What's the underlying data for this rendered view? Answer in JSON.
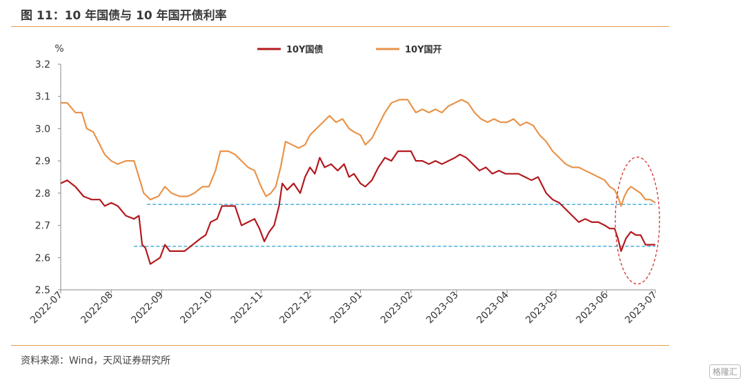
{
  "figure": {
    "title": "图 11：10 年国债与 10 年国开债利率",
    "source": "资料来源：Wind，天风证券研究所",
    "watermark": "格隆汇"
  },
  "chart_data": {
    "type": "line",
    "ylabel": "%",
    "ylim": [
      2.5,
      3.2
    ],
    "yticks": [
      "3.2",
      "3.1",
      "3.0",
      "2.9",
      "2.8",
      "2.7",
      "2.6",
      "2.5"
    ],
    "xticks": [
      "2022-07",
      "2022-08",
      "2022-09",
      "2022-10",
      "2022-11",
      "2022-12",
      "2023-01",
      "2023-02",
      "2023-03",
      "2023-04",
      "2023-05",
      "2023-06",
      "2023-07"
    ],
    "legend_position": "top-center",
    "series": [
      {
        "name": "10Y国债",
        "color": "#b3181d",
        "points": [
          [
            "2022-07-01",
            2.83
          ],
          [
            "2022-07-05",
            2.84
          ],
          [
            "2022-07-10",
            2.82
          ],
          [
            "2022-07-15",
            2.79
          ],
          [
            "2022-07-20",
            2.78
          ],
          [
            "2022-07-25",
            2.78
          ],
          [
            "2022-07-28",
            2.76
          ],
          [
            "2022-08-01",
            2.77
          ],
          [
            "2022-08-05",
            2.76
          ],
          [
            "2022-08-10",
            2.73
          ],
          [
            "2022-08-15",
            2.72
          ],
          [
            "2022-08-18",
            2.73
          ],
          [
            "2022-08-20",
            2.64
          ],
          [
            "2022-08-22",
            2.63
          ],
          [
            "2022-08-25",
            2.58
          ],
          [
            "2022-08-28",
            2.59
          ],
          [
            "2022-08-31",
            2.6
          ],
          [
            "2022-09-03",
            2.64
          ],
          [
            "2022-09-06",
            2.62
          ],
          [
            "2022-09-10",
            2.62
          ],
          [
            "2022-09-15",
            2.62
          ],
          [
            "2022-09-20",
            2.64
          ],
          [
            "2022-09-25",
            2.66
          ],
          [
            "2022-09-28",
            2.67
          ],
          [
            "2022-10-01",
            2.71
          ],
          [
            "2022-10-05",
            2.72
          ],
          [
            "2022-10-08",
            2.76
          ],
          [
            "2022-10-12",
            2.76
          ],
          [
            "2022-10-16",
            2.76
          ],
          [
            "2022-10-20",
            2.7
          ],
          [
            "2022-10-24",
            2.71
          ],
          [
            "2022-10-28",
            2.72
          ],
          [
            "2022-10-31",
            2.69
          ],
          [
            "2022-11-03",
            2.65
          ],
          [
            "2022-11-06",
            2.68
          ],
          [
            "2022-11-09",
            2.7
          ],
          [
            "2022-11-12",
            2.76
          ],
          [
            "2022-11-14",
            2.83
          ],
          [
            "2022-11-17",
            2.81
          ],
          [
            "2022-11-21",
            2.83
          ],
          [
            "2022-11-25",
            2.8
          ],
          [
            "2022-11-28",
            2.85
          ],
          [
            "2022-12-01",
            2.88
          ],
          [
            "2022-12-04",
            2.86
          ],
          [
            "2022-12-07",
            2.91
          ],
          [
            "2022-12-10",
            2.88
          ],
          [
            "2022-12-14",
            2.89
          ],
          [
            "2022-12-18",
            2.87
          ],
          [
            "2022-12-22",
            2.89
          ],
          [
            "2022-12-25",
            2.85
          ],
          [
            "2022-12-28",
            2.86
          ],
          [
            "2023-01-01",
            2.83
          ],
          [
            "2023-01-04",
            2.82
          ],
          [
            "2023-01-08",
            2.84
          ],
          [
            "2023-01-12",
            2.88
          ],
          [
            "2023-01-16",
            2.91
          ],
          [
            "2023-01-20",
            2.9
          ],
          [
            "2023-01-24",
            2.93
          ],
          [
            "2023-01-28",
            2.93
          ],
          [
            "2023-02-01",
            2.93
          ],
          [
            "2023-02-04",
            2.9
          ],
          [
            "2023-02-08",
            2.9
          ],
          [
            "2023-02-12",
            2.89
          ],
          [
            "2023-02-16",
            2.9
          ],
          [
            "2023-02-20",
            2.89
          ],
          [
            "2023-02-24",
            2.9
          ],
          [
            "2023-02-28",
            2.91
          ],
          [
            "2023-03-03",
            2.92
          ],
          [
            "2023-03-07",
            2.91
          ],
          [
            "2023-03-11",
            2.89
          ],
          [
            "2023-03-15",
            2.87
          ],
          [
            "2023-03-19",
            2.88
          ],
          [
            "2023-03-23",
            2.86
          ],
          [
            "2023-03-27",
            2.87
          ],
          [
            "2023-03-31",
            2.86
          ],
          [
            "2023-04-04",
            2.86
          ],
          [
            "2023-04-08",
            2.86
          ],
          [
            "2023-04-12",
            2.85
          ],
          [
            "2023-04-16",
            2.84
          ],
          [
            "2023-04-20",
            2.85
          ],
          [
            "2023-04-25",
            2.8
          ],
          [
            "2023-04-29",
            2.78
          ],
          [
            "2023-05-03",
            2.77
          ],
          [
            "2023-05-07",
            2.75
          ],
          [
            "2023-05-11",
            2.73
          ],
          [
            "2023-05-15",
            2.71
          ],
          [
            "2023-05-19",
            2.72
          ],
          [
            "2023-05-23",
            2.71
          ],
          [
            "2023-05-27",
            2.71
          ],
          [
            "2023-05-31",
            2.7
          ],
          [
            "2023-06-03",
            2.69
          ],
          [
            "2023-06-06",
            2.69
          ],
          [
            "2023-06-08",
            2.66
          ],
          [
            "2023-06-10",
            2.62
          ],
          [
            "2023-06-13",
            2.66
          ],
          [
            "2023-06-16",
            2.68
          ],
          [
            "2023-06-19",
            2.67
          ],
          [
            "2023-06-22",
            2.67
          ],
          [
            "2023-06-25",
            2.64
          ],
          [
            "2023-06-28",
            2.64
          ],
          [
            "2023-07-01",
            2.64
          ]
        ]
      },
      {
        "name": "10Y国开",
        "color": "#e8934a",
        "points": [
          [
            "2022-07-01",
            3.08
          ],
          [
            "2022-07-05",
            3.08
          ],
          [
            "2022-07-10",
            3.05
          ],
          [
            "2022-07-14",
            3.05
          ],
          [
            "2022-07-17",
            3.0
          ],
          [
            "2022-07-21",
            2.99
          ],
          [
            "2022-07-25",
            2.95
          ],
          [
            "2022-07-28",
            2.92
          ],
          [
            "2022-08-01",
            2.9
          ],
          [
            "2022-08-05",
            2.89
          ],
          [
            "2022-08-10",
            2.9
          ],
          [
            "2022-08-15",
            2.9
          ],
          [
            "2022-08-18",
            2.85
          ],
          [
            "2022-08-21",
            2.8
          ],
          [
            "2022-08-25",
            2.78
          ],
          [
            "2022-08-30",
            2.79
          ],
          [
            "2022-09-03",
            2.82
          ],
          [
            "2022-09-07",
            2.8
          ],
          [
            "2022-09-12",
            2.79
          ],
          [
            "2022-09-17",
            2.79
          ],
          [
            "2022-09-21",
            2.8
          ],
          [
            "2022-09-26",
            2.82
          ],
          [
            "2022-09-30",
            2.82
          ],
          [
            "2022-10-04",
            2.87
          ],
          [
            "2022-10-07",
            2.93
          ],
          [
            "2022-10-12",
            2.93
          ],
          [
            "2022-10-16",
            2.92
          ],
          [
            "2022-10-20",
            2.9
          ],
          [
            "2022-10-24",
            2.88
          ],
          [
            "2022-10-28",
            2.87
          ],
          [
            "2022-11-01",
            2.82
          ],
          [
            "2022-11-04",
            2.79
          ],
          [
            "2022-11-07",
            2.8
          ],
          [
            "2022-11-10",
            2.82
          ],
          [
            "2022-11-13",
            2.88
          ],
          [
            "2022-11-16",
            2.96
          ],
          [
            "2022-11-20",
            2.95
          ],
          [
            "2022-11-24",
            2.94
          ],
          [
            "2022-11-28",
            2.95
          ],
          [
            "2022-12-01",
            2.98
          ],
          [
            "2022-12-05",
            3.0
          ],
          [
            "2022-12-09",
            3.02
          ],
          [
            "2022-12-13",
            3.04
          ],
          [
            "2022-12-17",
            3.02
          ],
          [
            "2022-12-21",
            3.03
          ],
          [
            "2022-12-25",
            3.0
          ],
          [
            "2022-12-28",
            2.99
          ],
          [
            "2023-01-01",
            2.98
          ],
          [
            "2023-01-04",
            2.95
          ],
          [
            "2023-01-08",
            2.97
          ],
          [
            "2023-01-12",
            3.01
          ],
          [
            "2023-01-16",
            3.05
          ],
          [
            "2023-01-20",
            3.08
          ],
          [
            "2023-01-25",
            3.09
          ],
          [
            "2023-01-30",
            3.09
          ],
          [
            "2023-02-04",
            3.05
          ],
          [
            "2023-02-08",
            3.06
          ],
          [
            "2023-02-12",
            3.05
          ],
          [
            "2023-02-16",
            3.06
          ],
          [
            "2023-02-20",
            3.05
          ],
          [
            "2023-02-24",
            3.07
          ],
          [
            "2023-02-28",
            3.08
          ],
          [
            "2023-03-04",
            3.09
          ],
          [
            "2023-03-08",
            3.08
          ],
          [
            "2023-03-12",
            3.05
          ],
          [
            "2023-03-16",
            3.03
          ],
          [
            "2023-03-20",
            3.02
          ],
          [
            "2023-03-24",
            3.03
          ],
          [
            "2023-03-28",
            3.02
          ],
          [
            "2023-04-01",
            3.02
          ],
          [
            "2023-04-05",
            3.03
          ],
          [
            "2023-04-09",
            3.01
          ],
          [
            "2023-04-13",
            3.02
          ],
          [
            "2023-04-17",
            3.01
          ],
          [
            "2023-04-21",
            2.98
          ],
          [
            "2023-04-25",
            2.96
          ],
          [
            "2023-04-29",
            2.93
          ],
          [
            "2023-05-03",
            2.91
          ],
          [
            "2023-05-07",
            2.89
          ],
          [
            "2023-05-11",
            2.88
          ],
          [
            "2023-05-15",
            2.88
          ],
          [
            "2023-05-19",
            2.87
          ],
          [
            "2023-05-23",
            2.86
          ],
          [
            "2023-05-27",
            2.85
          ],
          [
            "2023-05-31",
            2.84
          ],
          [
            "2023-06-03",
            2.82
          ],
          [
            "2023-06-06",
            2.81
          ],
          [
            "2023-06-08",
            2.79
          ],
          [
            "2023-06-10",
            2.76
          ],
          [
            "2023-06-12",
            2.79
          ],
          [
            "2023-06-14",
            2.81
          ],
          [
            "2023-06-16",
            2.82
          ],
          [
            "2023-06-19",
            2.81
          ],
          [
            "2023-06-22",
            2.8
          ],
          [
            "2023-06-25",
            2.78
          ],
          [
            "2023-06-28",
            2.78
          ],
          [
            "2023-07-01",
            2.77
          ]
        ]
      }
    ],
    "reference_lines": [
      {
        "y": 2.765,
        "from": "2022-08-23",
        "to": "2023-07-01",
        "color": "#3aa6d8",
        "style": "dashed"
      },
      {
        "y": 2.635,
        "from": "2022-08-15",
        "to": "2023-07-01",
        "color": "#3aa6d8",
        "style": "dashed"
      }
    ],
    "highlight_ellipse": {
      "center_date": "2023-06-20",
      "center_y": 2.715,
      "color": "#d32f2f",
      "style": "dashed"
    }
  }
}
